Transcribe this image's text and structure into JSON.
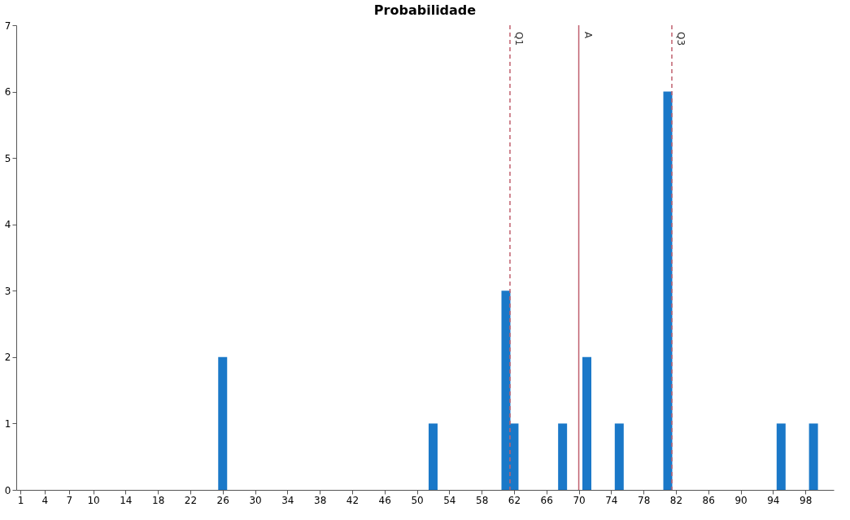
{
  "chart_data": {
    "type": "bar",
    "title": "Probabilidade",
    "x": [
      26,
      52,
      61,
      62,
      68,
      71,
      75,
      81,
      95,
      99
    ],
    "series": [
      {
        "color": "#1a78c8",
        "values": [
          2,
          1,
          3,
          1,
          1,
          2,
          1,
          6,
          1,
          1
        ]
      }
    ],
    "xlim": [
      1,
      101
    ],
    "xticks": [
      1,
      4,
      7,
      10,
      14,
      18,
      22,
      26,
      30,
      34,
      38,
      42,
      46,
      50,
      54,
      58,
      62,
      66,
      70,
      74,
      78,
      82,
      86,
      90,
      94,
      98
    ],
    "ylim": [
      0,
      7
    ],
    "yticks": [
      0,
      1,
      2,
      3,
      4,
      5,
      6,
      7
    ],
    "ref_lines": [
      {
        "axis": "x",
        "value": 61.5,
        "label": "Q1",
        "color": "#c0606e",
        "line_style": "dashed"
      },
      {
        "axis": "x",
        "value": 70,
        "label": "A",
        "color": "#c0606e",
        "line_style": "solid"
      },
      {
        "axis": "x",
        "value": 81.5,
        "label": "Q3",
        "color": "#c0606e",
        "line_style": "dashed"
      }
    ],
    "grid": false
  }
}
